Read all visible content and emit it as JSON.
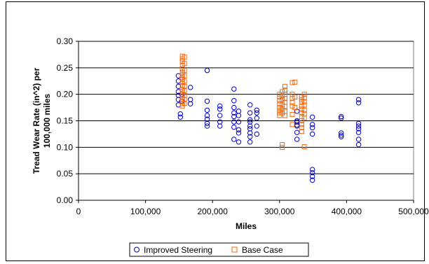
{
  "chart_data": {
    "type": "scatter",
    "xlabel": "Miles",
    "ylabel_lines": [
      "Tread Wear Rate (in^2) per",
      "100,000 miles"
    ],
    "xlim": [
      0,
      500000
    ],
    "ylim": [
      0,
      0.3
    ],
    "x_ticks": [
      0,
      100000,
      200000,
      300000,
      400000,
      500000
    ],
    "x_tick_labels": [
      "0",
      "100,000",
      "200,000",
      "300,000",
      "400,000",
      "500,000"
    ],
    "y_ticks": [
      0,
      0.05,
      0.1,
      0.15,
      0.2,
      0.25,
      0.3
    ],
    "y_tick_labels": [
      "0.00",
      "0.05",
      "0.10",
      "0.15",
      "0.20",
      "0.25",
      "0.30"
    ],
    "grid": "horizontal",
    "legend_position": "bottom",
    "series": [
      {
        "name": "Improved Steering",
        "marker": "circle",
        "color": "#0000cc",
        "points": [
          [
            149000,
            0.235
          ],
          [
            149000,
            0.225
          ],
          [
            149000,
            0.215
          ],
          [
            149000,
            0.205
          ],
          [
            149000,
            0.198
          ],
          [
            149000,
            0.19
          ],
          [
            149000,
            0.18
          ],
          [
            152000,
            0.163
          ],
          [
            152000,
            0.157
          ],
          [
            154000,
            0.2
          ],
          [
            154000,
            0.187
          ],
          [
            167000,
            0.213
          ],
          [
            167000,
            0.19
          ],
          [
            167000,
            0.182
          ],
          [
            192000,
            0.245
          ],
          [
            192000,
            0.187
          ],
          [
            192000,
            0.17
          ],
          [
            192000,
            0.16
          ],
          [
            192000,
            0.153
          ],
          [
            192000,
            0.145
          ],
          [
            192000,
            0.14
          ],
          [
            211000,
            0.178
          ],
          [
            211000,
            0.172
          ],
          [
            211000,
            0.16
          ],
          [
            211000,
            0.148
          ],
          [
            211000,
            0.14
          ],
          [
            232000,
            0.21
          ],
          [
            232000,
            0.188
          ],
          [
            232000,
            0.175
          ],
          [
            232000,
            0.165
          ],
          [
            232000,
            0.158
          ],
          [
            232000,
            0.148
          ],
          [
            232000,
            0.138
          ],
          [
            232000,
            0.115
          ],
          [
            239000,
            0.168
          ],
          [
            239000,
            0.16
          ],
          [
            239000,
            0.148
          ],
          [
            239000,
            0.133
          ],
          [
            239000,
            0.127
          ],
          [
            239000,
            0.11
          ],
          [
            256000,
            0.18
          ],
          [
            256000,
            0.165
          ],
          [
            256000,
            0.152
          ],
          [
            256000,
            0.148
          ],
          [
            256000,
            0.14
          ],
          [
            256000,
            0.135
          ],
          [
            256000,
            0.127
          ],
          [
            256000,
            0.12
          ],
          [
            256000,
            0.11
          ],
          [
            266000,
            0.17
          ],
          [
            266000,
            0.165
          ],
          [
            266000,
            0.155
          ],
          [
            266000,
            0.14
          ],
          [
            266000,
            0.125
          ],
          [
            326000,
            0.168
          ],
          [
            326000,
            0.15
          ],
          [
            326000,
            0.148
          ],
          [
            326000,
            0.142
          ],
          [
            326000,
            0.14
          ],
          [
            326000,
            0.128
          ],
          [
            326000,
            0.115
          ],
          [
            349000,
            0.157
          ],
          [
            349000,
            0.143
          ],
          [
            349000,
            0.137
          ],
          [
            349000,
            0.125
          ],
          [
            349000,
            0.058
          ],
          [
            349000,
            0.052
          ],
          [
            349000,
            0.045
          ],
          [
            349000,
            0.038
          ],
          [
            392000,
            0.158
          ],
          [
            392000,
            0.155
          ],
          [
            392000,
            0.127
          ],
          [
            392000,
            0.123
          ],
          [
            392000,
            0.12
          ],
          [
            418000,
            0.19
          ],
          [
            418000,
            0.184
          ],
          [
            418000,
            0.145
          ],
          [
            418000,
            0.14
          ],
          [
            418000,
            0.135
          ],
          [
            418000,
            0.128
          ],
          [
            418000,
            0.115
          ],
          [
            418000,
            0.105
          ]
        ]
      },
      {
        "name": "Base Case",
        "marker": "square",
        "color": "#ff6600",
        "points": [
          [
            155000,
            0.272
          ],
          [
            155000,
            0.267
          ],
          [
            155000,
            0.262
          ],
          [
            155000,
            0.255
          ],
          [
            155000,
            0.248
          ],
          [
            155000,
            0.242
          ],
          [
            155000,
            0.237
          ],
          [
            155000,
            0.232
          ],
          [
            155000,
            0.228
          ],
          [
            155000,
            0.222
          ],
          [
            155000,
            0.216
          ],
          [
            155000,
            0.21
          ],
          [
            155000,
            0.205
          ],
          [
            155000,
            0.2
          ],
          [
            155000,
            0.195
          ],
          [
            155000,
            0.19
          ],
          [
            155000,
            0.186
          ],
          [
            155000,
            0.182
          ],
          [
            155000,
            0.178
          ],
          [
            158000,
            0.27
          ],
          [
            158000,
            0.258
          ],
          [
            158000,
            0.245
          ],
          [
            158000,
            0.235
          ],
          [
            158000,
            0.225
          ],
          [
            158000,
            0.215
          ],
          [
            158000,
            0.207
          ],
          [
            158000,
            0.198
          ],
          [
            158000,
            0.19
          ],
          [
            158000,
            0.183
          ],
          [
            300000,
            0.2
          ],
          [
            300000,
            0.195
          ],
          [
            300000,
            0.188
          ],
          [
            300000,
            0.182
          ],
          [
            300000,
            0.175
          ],
          [
            300000,
            0.17
          ],
          [
            300000,
            0.165
          ],
          [
            300000,
            0.16
          ],
          [
            304000,
            0.205
          ],
          [
            304000,
            0.197
          ],
          [
            304000,
            0.19
          ],
          [
            304000,
            0.18
          ],
          [
            304000,
            0.172
          ],
          [
            304000,
            0.165
          ],
          [
            304000,
            0.105
          ],
          [
            304000,
            0.1
          ],
          [
            308000,
            0.215
          ],
          [
            308000,
            0.208
          ],
          [
            308000,
            0.2
          ],
          [
            308000,
            0.192
          ],
          [
            308000,
            0.185
          ],
          [
            308000,
            0.177
          ],
          [
            308000,
            0.168
          ],
          [
            308000,
            0.16
          ],
          [
            319000,
            0.222
          ],
          [
            319000,
            0.2
          ],
          [
            319000,
            0.192
          ],
          [
            319000,
            0.185
          ],
          [
            319000,
            0.178
          ],
          [
            319000,
            0.162
          ],
          [
            319000,
            0.143
          ],
          [
            323000,
            0.223
          ],
          [
            323000,
            0.195
          ],
          [
            323000,
            0.175
          ],
          [
            333000,
            0.195
          ],
          [
            333000,
            0.19
          ],
          [
            333000,
            0.185
          ],
          [
            333000,
            0.178
          ],
          [
            333000,
            0.172
          ],
          [
            333000,
            0.165
          ],
          [
            333000,
            0.158
          ],
          [
            333000,
            0.15
          ],
          [
            333000,
            0.143
          ],
          [
            333000,
            0.137
          ],
          [
            333000,
            0.13
          ],
          [
            337000,
            0.2
          ],
          [
            337000,
            0.193
          ],
          [
            337000,
            0.186
          ],
          [
            337000,
            0.18
          ],
          [
            337000,
            0.17
          ],
          [
            337000,
            0.163
          ],
          [
            337000,
            0.155
          ],
          [
            337000,
            0.101
          ]
        ]
      }
    ]
  }
}
